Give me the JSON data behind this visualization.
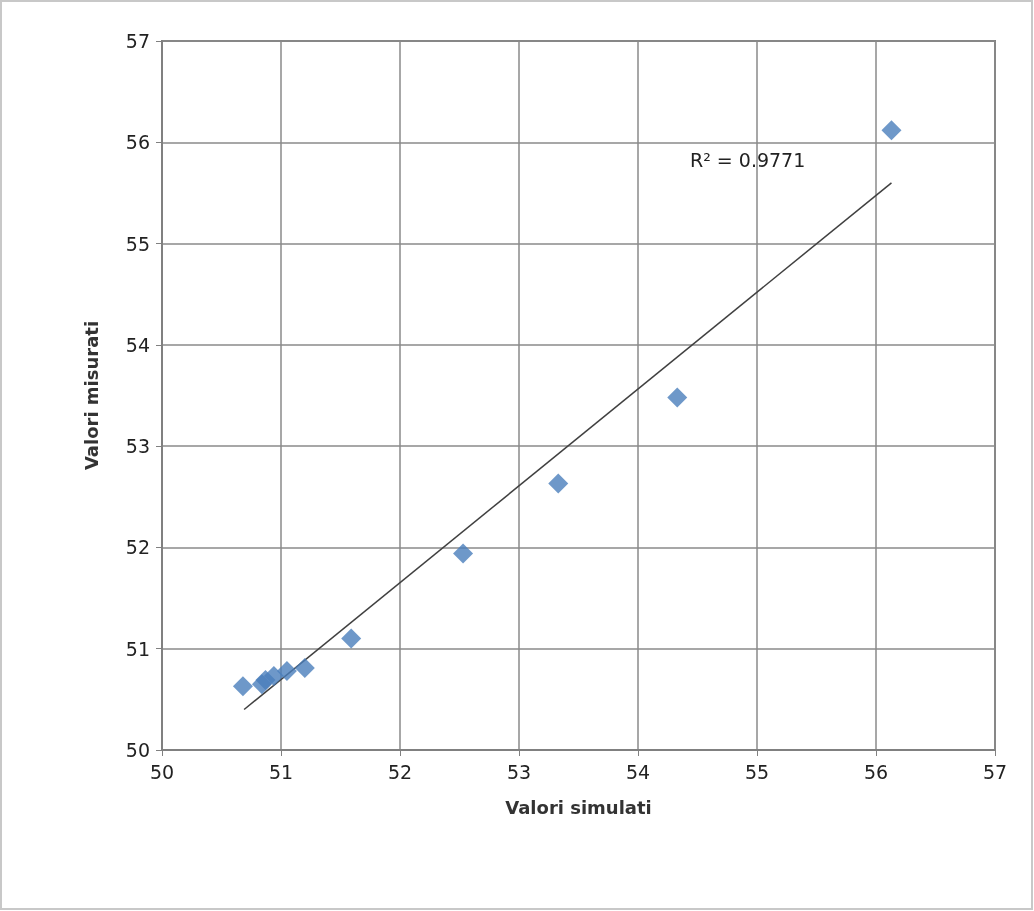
{
  "chart_data": {
    "type": "scatter",
    "xlabel": "Valori simulati",
    "ylabel": "Valori misurati",
    "xlim": [
      50,
      57
    ],
    "xticks": [
      50,
      51,
      52,
      53,
      54,
      55,
      56,
      57
    ],
    "ylim": [
      50,
      57
    ],
    "yticks": [
      50,
      51,
      52,
      53,
      54,
      55,
      56,
      57
    ],
    "grid": true,
    "marker": "diamond",
    "annotations": [
      "R² = 0.9771"
    ],
    "series": [
      {
        "color": "#4a7ebb",
        "x": [
          50.68,
          50.84,
          50.87,
          50.94,
          51.05,
          51.2,
          51.59,
          52.53,
          53.33,
          54.33,
          56.13
        ],
        "values": [
          50.63,
          50.65,
          50.69,
          50.73,
          50.78,
          50.81,
          51.1,
          51.94,
          52.63,
          53.48,
          56.12
        ]
      },
      {
        "type": "line",
        "marker": "none",
        "color": "#404040",
        "x": [
          50.69,
          56.13
        ],
        "values": [
          50.4,
          55.6
        ]
      }
    ]
  }
}
